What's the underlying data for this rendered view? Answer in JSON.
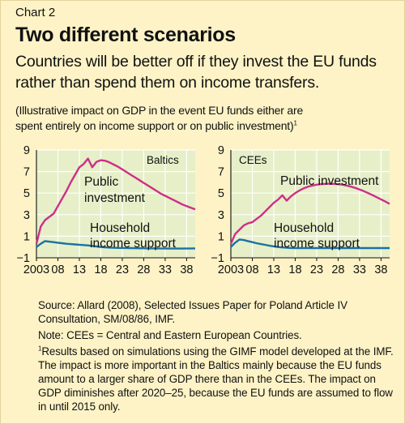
{
  "header": {
    "chart_label": "Chart 2",
    "title": "Two different scenarios",
    "subtitle_line1": "Countries will be better off if they invest the EU funds",
    "subtitle_line2": "rather than spend them on income transfers.",
    "note_line1": "(Illustrative impact on GDP in the event EU funds either are",
    "note_line2": "spent entirely on income support or on public investment)",
    "note_footnote_mark": "1"
  },
  "footer": {
    "source": "Source: Allard (2008), Selected Issues Paper for Poland Article IV Consultation, SM/08/86, IMF.",
    "note": "Note: CEEs = Central and Eastern European Countries.",
    "footnote_mark": "1",
    "footnote": "Results based on simulations using the GIMF model developed at the IMF. The impact is more important in the Baltics mainly because the EU funds amount to a larger share of GDP there than in the CEEs. The impact on GDP diminishes after 2020–25, because the EU funds are assumed to flow in until 2015 only."
  },
  "colors": {
    "background": "#fdf3c6",
    "plot_area": "#e6efc8",
    "grid": "#ffffff",
    "public_investment": "#cf2e88",
    "household_income": "#1b71a5"
  },
  "chart_data": [
    {
      "type": "line",
      "title": "Baltics",
      "ylim": [
        -1,
        9
      ],
      "yticks": [
        -1,
        1,
        3,
        5,
        7,
        9
      ],
      "xlim": [
        2003,
        2040
      ],
      "xticks": [
        2003,
        2008,
        2013,
        2018,
        2023,
        2028,
        2033,
        2038
      ],
      "xtick_labels": [
        "2003",
        "08",
        "13",
        "18",
        "23",
        "28",
        "33",
        "38"
      ],
      "grid": true,
      "series": [
        {
          "name": "Public investment",
          "name_lines": [
            "Public",
            "investment"
          ],
          "x": [
            2003,
            2004,
            2005,
            2006,
            2007,
            2008,
            2009,
            2010,
            2011,
            2012,
            2013,
            2014,
            2015,
            2016,
            2017,
            2018,
            2019,
            2020,
            2021,
            2022,
            2023,
            2024,
            2025,
            2026,
            2027,
            2028,
            2029,
            2030,
            2031,
            2032,
            2033,
            2034,
            2035,
            2036,
            2037,
            2038,
            2039,
            2040
          ],
          "values": [
            0.3,
            1.9,
            2.5,
            2.8,
            3.1,
            3.8,
            4.5,
            5.2,
            6.0,
            6.7,
            7.4,
            7.7,
            8.2,
            7.4,
            7.9,
            8.05,
            8.0,
            7.85,
            7.65,
            7.45,
            7.2,
            6.95,
            6.7,
            6.45,
            6.2,
            5.95,
            5.7,
            5.45,
            5.2,
            4.95,
            4.75,
            4.55,
            4.35,
            4.15,
            3.95,
            3.8,
            3.65,
            3.5
          ]
        },
        {
          "name": "Household income support",
          "name_lines": [
            "Household",
            "income support"
          ],
          "x": [
            2003,
            2004,
            2005,
            2006,
            2007,
            2008,
            2009,
            2010,
            2011,
            2012,
            2013,
            2014,
            2015,
            2016,
            2017,
            2018,
            2020,
            2022,
            2025,
            2028,
            2031,
            2034,
            2037,
            2040
          ],
          "values": [
            0.0,
            0.3,
            0.55,
            0.5,
            0.45,
            0.4,
            0.35,
            0.3,
            0.27,
            0.24,
            0.21,
            0.18,
            0.15,
            0.1,
            0.05,
            0.0,
            -0.05,
            -0.08,
            -0.1,
            -0.12,
            -0.13,
            -0.14,
            -0.14,
            -0.13
          ]
        }
      ]
    },
    {
      "type": "line",
      "title": "CEEs",
      "ylim": [
        -1,
        9
      ],
      "yticks": [
        -1,
        1,
        3,
        5,
        7,
        9
      ],
      "xlim": [
        2003,
        2040
      ],
      "xticks": [
        2003,
        2008,
        2013,
        2018,
        2023,
        2028,
        2033,
        2038
      ],
      "xtick_labels": [
        "2003",
        "08",
        "13",
        "18",
        "23",
        "28",
        "33",
        "38"
      ],
      "grid": true,
      "series": [
        {
          "name": "Public investment",
          "name_lines": [
            "Public investment"
          ],
          "x": [
            2003,
            2004,
            2005,
            2006,
            2007,
            2008,
            2009,
            2010,
            2011,
            2012,
            2013,
            2014,
            2015,
            2016,
            2017,
            2018,
            2019,
            2020,
            2021,
            2022,
            2023,
            2024,
            2025,
            2026,
            2027,
            2028,
            2029,
            2030,
            2031,
            2032,
            2033,
            2034,
            2035,
            2036,
            2037,
            2038,
            2039,
            2040
          ],
          "values": [
            0.3,
            1.2,
            1.6,
            2.0,
            2.2,
            2.3,
            2.6,
            2.9,
            3.3,
            3.7,
            4.1,
            4.4,
            4.8,
            4.3,
            4.7,
            5.0,
            5.25,
            5.45,
            5.6,
            5.7,
            5.78,
            5.83,
            5.86,
            5.87,
            5.86,
            5.83,
            5.78,
            5.7,
            5.6,
            5.48,
            5.34,
            5.18,
            5.0,
            4.82,
            4.62,
            4.42,
            4.22,
            4.0
          ]
        },
        {
          "name": "Household income support",
          "name_lines": [
            "Household",
            "income support"
          ],
          "x": [
            2003,
            2004,
            2005,
            2006,
            2007,
            2008,
            2009,
            2010,
            2011,
            2012,
            2013,
            2014,
            2015,
            2016,
            2017,
            2018,
            2020,
            2022,
            2025,
            2028,
            2031,
            2034,
            2037,
            2040
          ],
          "values": [
            0.0,
            0.4,
            0.7,
            0.65,
            0.55,
            0.45,
            0.35,
            0.27,
            0.2,
            0.12,
            0.06,
            0.0,
            -0.04,
            -0.07,
            -0.09,
            -0.1,
            -0.1,
            -0.1,
            -0.1,
            -0.1,
            -0.1,
            -0.1,
            -0.1,
            -0.1
          ]
        }
      ]
    }
  ]
}
